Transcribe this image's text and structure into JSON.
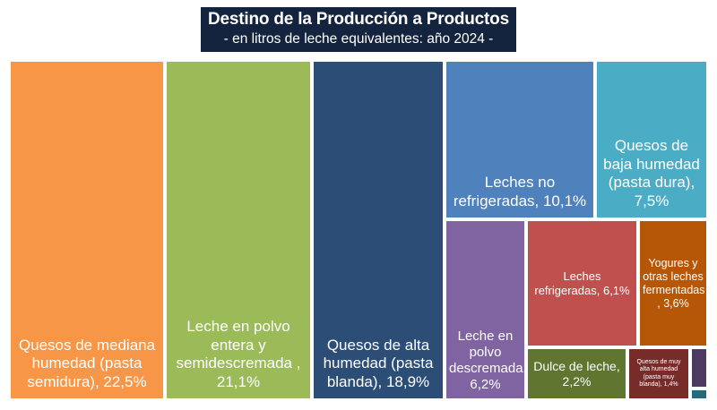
{
  "chart_data": {
    "type": "treemap",
    "title": "Destino de la Producción a Productos",
    "subtitle": "- en litros de leche equivalentes: año 2024 -",
    "items": [
      {
        "label": "Quesos de mediana humedad (pasta semidura), 22,5%",
        "value": 22.5,
        "color": "#f79646"
      },
      {
        "label": "Leche en polvo entera y semidescremada , 21,1%",
        "value": 21.1,
        "color": "#9bbb59"
      },
      {
        "label": "Quesos de alta humedad (pasta blanda), 18,9%",
        "value": 18.9,
        "color": "#2c4d75"
      },
      {
        "label": "Leches no refrigeradas, 10,1%",
        "value": 10.1,
        "color": "#4f81bd"
      },
      {
        "label": "Quesos de baja humedad (pasta dura), 7,5%",
        "value": 7.5,
        "color": "#4bacc6"
      },
      {
        "label": "Leche en polvo descremada, 6,2%",
        "value": 6.2,
        "color": "#8064a2"
      },
      {
        "label": "Leches refrigeradas, 6,1%",
        "value": 6.1,
        "color": "#c0504d"
      },
      {
        "label": "Yogures y otras leches fermentadas , 3,6%",
        "value": 3.6,
        "color": "#b65708"
      },
      {
        "label": "Dulce de leche, 2,2%",
        "value": 2.2,
        "color": "#5f7530"
      },
      {
        "label": "Quesos de muy alta humedad (pasta muy blanda), 1,4%",
        "value": 1.4,
        "color": "#772c2a"
      },
      {
        "value": 0.3,
        "color": "#4d3b62"
      },
      {
        "value": 0.1,
        "color": "#276a7c"
      }
    ]
  }
}
